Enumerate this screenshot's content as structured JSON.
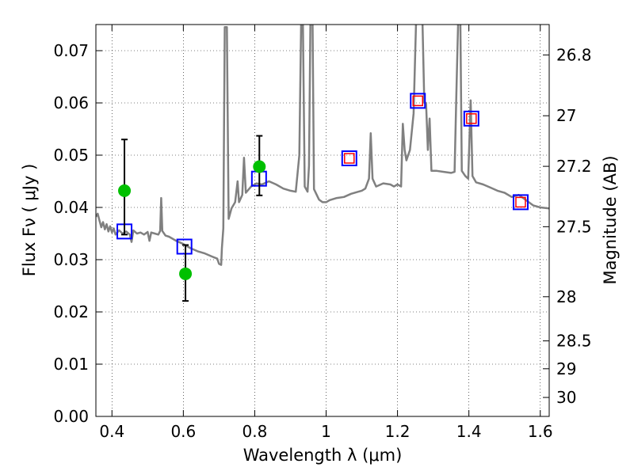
{
  "chart_data": {
    "type": "scatter",
    "xlabel": "Wavelength  λ (μm)",
    "ylabel": "Flux  Fν  ( μJy )",
    "y2label": "Magnitude (AB)",
    "xlim": [
      0.355,
      1.625
    ],
    "ylim": [
      0.0,
      0.075
    ],
    "grid": true,
    "x_ticks": [
      {
        "v": 0.4,
        "label": "0.4"
      },
      {
        "v": 0.6,
        "label": "0.6"
      },
      {
        "v": 0.8,
        "label": "0.8"
      },
      {
        "v": 1.0,
        "label": "1"
      },
      {
        "v": 1.2,
        "label": "1.2"
      },
      {
        "v": 1.4,
        "label": "1.4"
      },
      {
        "v": 1.6,
        "label": "1.6"
      }
    ],
    "y_ticks": [
      {
        "v": 0.0,
        "label": "0.00"
      },
      {
        "v": 0.01,
        "label": "0.01"
      },
      {
        "v": 0.02,
        "label": "0.02"
      },
      {
        "v": 0.03,
        "label": "0.03"
      },
      {
        "v": 0.04,
        "label": "0.04"
      },
      {
        "v": 0.05,
        "label": "0.05"
      },
      {
        "v": 0.06,
        "label": "0.06"
      },
      {
        "v": 0.07,
        "label": "0.07"
      }
    ],
    "y2_ticks": [
      {
        "mag": 26.8,
        "label": "26.8"
      },
      {
        "mag": 27.0,
        "label": "27"
      },
      {
        "mag": 27.2,
        "label": "27.2"
      },
      {
        "mag": 27.5,
        "label": "27.5"
      },
      {
        "mag": 28.0,
        "label": "28"
      },
      {
        "mag": 28.5,
        "label": "28.5"
      },
      {
        "mag": 29.0,
        "label": "29"
      },
      {
        "mag": 30.0,
        "label": "30"
      }
    ],
    "series": [
      {
        "kind": "line",
        "color": "#808080",
        "points": [
          [
            0.355,
            0.0382
          ],
          [
            0.36,
            0.0388
          ],
          [
            0.365,
            0.0375
          ],
          [
            0.37,
            0.0362
          ],
          [
            0.375,
            0.0372
          ],
          [
            0.38,
            0.0358
          ],
          [
            0.385,
            0.0368
          ],
          [
            0.39,
            0.0354
          ],
          [
            0.395,
            0.0364
          ],
          [
            0.4,
            0.0352
          ],
          [
            0.405,
            0.036
          ],
          [
            0.41,
            0.0348
          ],
          [
            0.42,
            0.0356
          ],
          [
            0.43,
            0.035
          ],
          [
            0.44,
            0.0354
          ],
          [
            0.45,
            0.0348
          ],
          [
            0.455,
            0.0334
          ],
          [
            0.46,
            0.0356
          ],
          [
            0.47,
            0.035
          ],
          [
            0.48,
            0.0352
          ],
          [
            0.49,
            0.0348
          ],
          [
            0.5,
            0.0353
          ],
          [
            0.505,
            0.0336
          ],
          [
            0.51,
            0.0352
          ],
          [
            0.52,
            0.035
          ],
          [
            0.53,
            0.0348
          ],
          [
            0.535,
            0.0355
          ],
          [
            0.538,
            0.0418
          ],
          [
            0.541,
            0.0355
          ],
          [
            0.55,
            0.0346
          ],
          [
            0.56,
            0.0344
          ],
          [
            0.58,
            0.0336
          ],
          [
            0.6,
            0.033
          ],
          [
            0.62,
            0.0322
          ],
          [
            0.64,
            0.0316
          ],
          [
            0.66,
            0.0312
          ],
          [
            0.68,
            0.0306
          ],
          [
            0.695,
            0.0302
          ],
          [
            0.7,
            0.0292
          ],
          [
            0.706,
            0.029
          ],
          [
            0.708,
            0.0322
          ],
          [
            0.712,
            0.036
          ],
          [
            0.716,
            0.0745
          ],
          [
            0.722,
            0.0745
          ],
          [
            0.727,
            0.0378
          ],
          [
            0.735,
            0.0398
          ],
          [
            0.745,
            0.041
          ],
          [
            0.752,
            0.045
          ],
          [
            0.756,
            0.041
          ],
          [
            0.765,
            0.0424
          ],
          [
            0.77,
            0.0495
          ],
          [
            0.775,
            0.0428
          ],
          [
            0.79,
            0.044
          ],
          [
            0.805,
            0.0446
          ],
          [
            0.82,
            0.0444
          ],
          [
            0.84,
            0.045
          ],
          [
            0.86,
            0.0444
          ],
          [
            0.88,
            0.0436
          ],
          [
            0.9,
            0.0432
          ],
          [
            0.915,
            0.043
          ],
          [
            0.925,
            0.05
          ],
          [
            0.93,
            0.0755
          ],
          [
            0.935,
            0.0755
          ],
          [
            0.94,
            0.044
          ],
          [
            0.948,
            0.043
          ],
          [
            0.952,
            0.048
          ],
          [
            0.956,
            0.0755
          ],
          [
            0.962,
            0.0755
          ],
          [
            0.966,
            0.0435
          ],
          [
            0.98,
            0.0415
          ],
          [
            0.99,
            0.041
          ],
          [
            1.0,
            0.041
          ],
          [
            1.01,
            0.0414
          ],
          [
            1.03,
            0.0418
          ],
          [
            1.05,
            0.042
          ],
          [
            1.07,
            0.0426
          ],
          [
            1.09,
            0.043
          ],
          [
            1.1,
            0.0432
          ],
          [
            1.11,
            0.0436
          ],
          [
            1.12,
            0.0455
          ],
          [
            1.125,
            0.0542
          ],
          [
            1.13,
            0.0455
          ],
          [
            1.14,
            0.044
          ],
          [
            1.16,
            0.0446
          ],
          [
            1.18,
            0.0444
          ],
          [
            1.19,
            0.044
          ],
          [
            1.2,
            0.0444
          ],
          [
            1.21,
            0.044
          ],
          [
            1.215,
            0.056
          ],
          [
            1.22,
            0.051
          ],
          [
            1.225,
            0.049
          ],
          [
            1.235,
            0.051
          ],
          [
            1.245,
            0.058
          ],
          [
            1.252,
            0.0755
          ],
          [
            1.27,
            0.0755
          ],
          [
            1.275,
            0.06
          ],
          [
            1.28,
            0.06
          ],
          [
            1.285,
            0.051
          ],
          [
            1.29,
            0.057
          ],
          [
            1.295,
            0.047
          ],
          [
            1.31,
            0.047
          ],
          [
            1.33,
            0.0468
          ],
          [
            1.35,
            0.0466
          ],
          [
            1.36,
            0.0468
          ],
          [
            1.365,
            0.062
          ],
          [
            1.37,
            0.0755
          ],
          [
            1.376,
            0.0755
          ],
          [
            1.38,
            0.047
          ],
          [
            1.39,
            0.046
          ],
          [
            1.398,
            0.0455
          ],
          [
            1.405,
            0.0605
          ],
          [
            1.41,
            0.046
          ],
          [
            1.42,
            0.0448
          ],
          [
            1.44,
            0.0444
          ],
          [
            1.46,
            0.0438
          ],
          [
            1.48,
            0.0432
          ],
          [
            1.5,
            0.0428
          ],
          [
            1.52,
            0.042
          ],
          [
            1.54,
            0.0424
          ],
          [
            1.56,
            0.0414
          ],
          [
            1.58,
            0.0404
          ],
          [
            1.6,
            0.04
          ],
          [
            1.625,
            0.0398
          ]
        ]
      },
      {
        "kind": "square",
        "color": "#0000ff",
        "points": [
          [
            0.435,
            0.0354
          ],
          [
            0.603,
            0.0325
          ],
          [
            0.812,
            0.0455
          ],
          [
            1.065,
            0.0494
          ],
          [
            1.257,
            0.0604
          ],
          [
            1.407,
            0.057
          ],
          [
            1.545,
            0.041
          ]
        ]
      },
      {
        "kind": "small-square",
        "color": "#ff0000",
        "points": [
          [
            1.065,
            0.0494
          ],
          [
            1.257,
            0.0604
          ],
          [
            1.407,
            0.057
          ],
          [
            1.545,
            0.041
          ]
        ]
      },
      {
        "kind": "point-errorbar",
        "color": "#00c000",
        "points": [
          {
            "x": 0.435,
            "y": 0.0432,
            "lo": 0.0348,
            "hi": 0.053
          },
          {
            "x": 0.606,
            "y": 0.0273,
            "lo": 0.0221,
            "hi": 0.0328
          },
          {
            "x": 0.813,
            "y": 0.0478,
            "lo": 0.0423,
            "hi": 0.0537
          }
        ]
      }
    ]
  }
}
